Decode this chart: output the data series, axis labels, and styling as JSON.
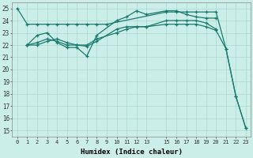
{
  "xlabel": "Humidex (Indice chaleur)",
  "xlim": [
    -0.5,
    23.5
  ],
  "ylim": [
    14.5,
    25.5
  ],
  "xticks": [
    0,
    1,
    2,
    3,
    4,
    5,
    6,
    7,
    8,
    9,
    10,
    11,
    12,
    13,
    15,
    16,
    17,
    18,
    19,
    20,
    21,
    22,
    23
  ],
  "yticks": [
    15,
    16,
    17,
    18,
    19,
    20,
    21,
    22,
    23,
    24,
    25
  ],
  "bg_color": "#cceee8",
  "grid_color": "#aad8d0",
  "line_color": "#1a7a6e",
  "lines": [
    {
      "x": [
        0,
        1,
        2,
        3,
        4,
        5,
        6,
        7,
        8,
        9,
        15,
        16,
        17,
        18,
        19,
        20,
        21,
        22,
        23
      ],
      "y": [
        25,
        23.7,
        23.7,
        23.7,
        23.7,
        23.7,
        23.7,
        23.7,
        23.7,
        23.7,
        24.7,
        24.7,
        24.7,
        24.7,
        24.7,
        24.7,
        21.7,
        17.8,
        15.2
      ]
    },
    {
      "x": [
        1,
        2,
        3,
        4,
        5,
        6,
        7,
        8,
        10,
        11,
        12,
        13,
        15,
        16,
        17,
        18,
        19,
        20
      ],
      "y": [
        22.0,
        22.8,
        23.0,
        22.2,
        21.8,
        21.8,
        21.1,
        22.8,
        24.0,
        24.3,
        24.8,
        24.5,
        24.8,
        24.8,
        24.5,
        24.3,
        24.2,
        24.2
      ]
    },
    {
      "x": [
        1,
        2,
        3,
        4,
        5,
        6,
        7,
        8,
        10,
        11,
        12,
        13,
        15,
        16,
        17,
        18,
        19,
        20,
        21,
        22,
        23
      ],
      "y": [
        22.0,
        22.2,
        22.5,
        22.3,
        22.0,
        22.0,
        22.0,
        22.5,
        23.0,
        23.3,
        23.5,
        23.5,
        23.7,
        23.7,
        23.7,
        23.7,
        23.5,
        23.2,
        21.7,
        17.8,
        15.2
      ]
    },
    {
      "x": [
        1,
        2,
        3,
        4,
        5,
        6,
        7,
        8,
        10,
        11,
        12,
        13,
        15,
        16,
        17,
        18,
        19,
        20
      ],
      "y": [
        22.0,
        22.0,
        22.3,
        22.5,
        22.2,
        22.0,
        21.9,
        22.3,
        23.3,
        23.5,
        23.5,
        23.5,
        24.0,
        24.0,
        24.0,
        24.0,
        23.8,
        23.3
      ]
    }
  ]
}
